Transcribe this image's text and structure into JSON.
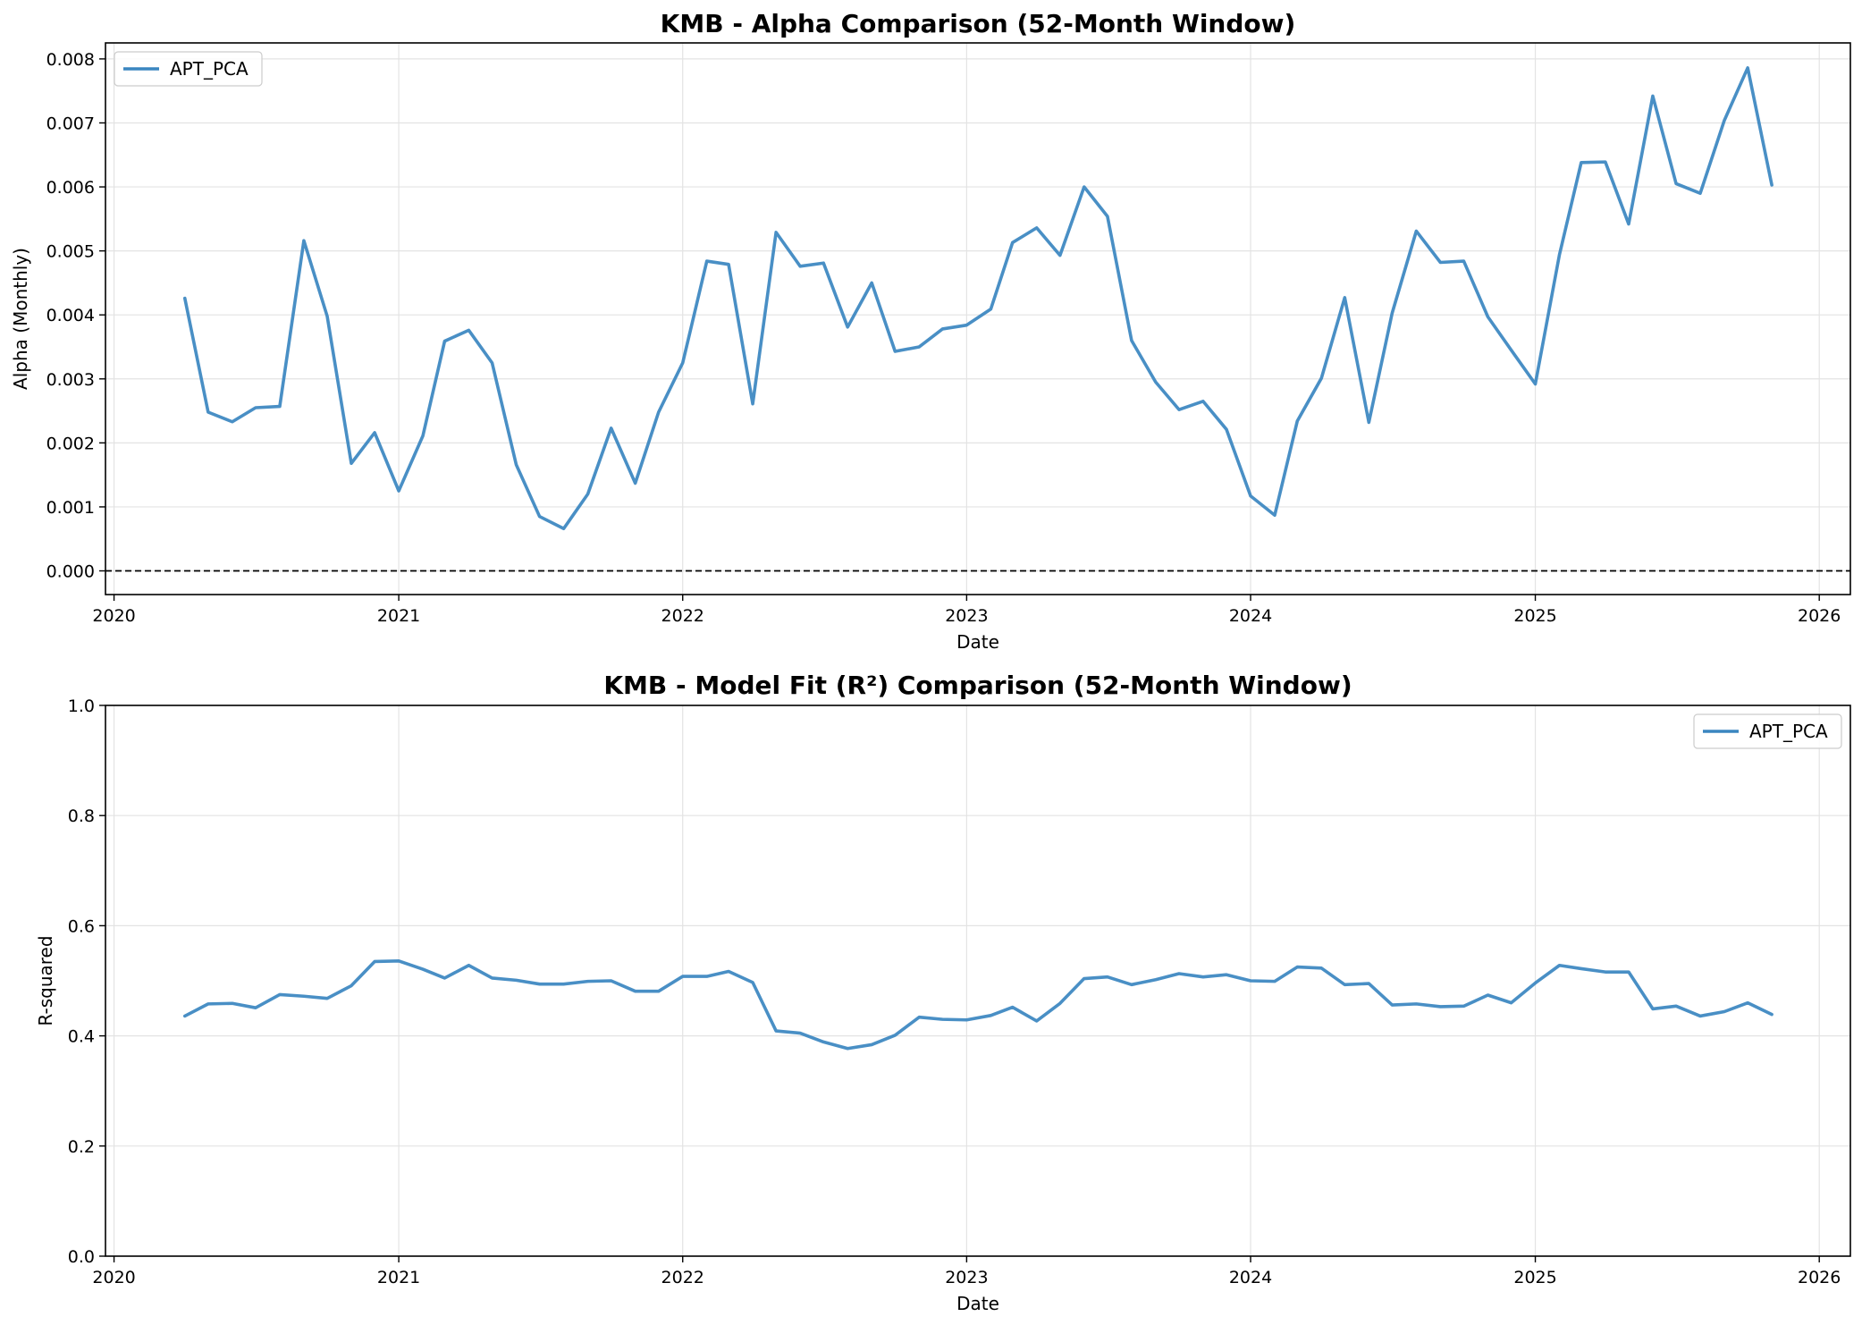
{
  "chart_data": [
    {
      "type": "line",
      "title": "KMB - Alpha Comparison (52-Month Window)",
      "xlabel": "Date",
      "ylabel": "Alpha (Monthly)",
      "xlim": [
        "2019-12-21",
        "2026-02-10"
      ],
      "ylim": [
        -0.00037,
        0.00825
      ],
      "yticks": [
        0.0,
        0.001,
        0.002,
        0.003,
        0.004,
        0.005,
        0.006,
        0.007,
        0.008
      ],
      "ytick_labels": [
        "0.000",
        "0.001",
        "0.002",
        "0.003",
        "0.004",
        "0.005",
        "0.006",
        "0.007",
        "0.008"
      ],
      "xticks": [
        "2020",
        "2021",
        "2022",
        "2023",
        "2024",
        "2025",
        "2026"
      ],
      "grid": true,
      "reference_line": {
        "y": 0,
        "style": "dashed",
        "color": "#000000"
      },
      "legend": {
        "position": "top-left"
      },
      "series": [
        {
          "name": "APT_PCA",
          "color": "#3a86c0",
          "x": [
            "2020-04",
            "2020-05",
            "2020-06",
            "2020-07",
            "2020-08",
            "2020-09",
            "2020-10",
            "2020-11",
            "2020-12",
            "2021-01",
            "2021-02",
            "2021-03",
            "2021-04",
            "2021-05",
            "2021-06",
            "2021-07",
            "2021-08",
            "2021-09",
            "2021-10",
            "2021-11",
            "2021-12",
            "2022-01",
            "2022-02",
            "2022-03",
            "2022-04",
            "2022-05",
            "2022-06",
            "2022-07",
            "2022-08",
            "2022-09",
            "2022-10",
            "2022-11",
            "2022-12",
            "2023-01",
            "2023-02",
            "2023-03",
            "2023-04",
            "2023-05",
            "2023-06",
            "2023-07",
            "2023-08",
            "2023-09",
            "2023-10",
            "2023-11",
            "2023-12",
            "2024-01",
            "2024-02",
            "2024-03",
            "2024-04",
            "2024-05",
            "2024-06",
            "2024-07",
            "2024-08",
            "2024-09",
            "2024-10",
            "2024-11",
            "2024-12",
            "2025-01",
            "2025-02",
            "2025-03",
            "2025-04",
            "2025-05",
            "2025-06",
            "2025-07",
            "2025-08",
            "2025-09",
            "2025-10",
            "2025-11"
          ],
          "values": [
            0.00426,
            0.00248,
            0.00233,
            0.00255,
            0.00257,
            0.00516,
            0.00398,
            0.00168,
            0.00216,
            0.00125,
            0.00211,
            0.00359,
            0.00376,
            0.00325,
            0.00166,
            0.00085,
            0.00066,
            0.0012,
            0.00223,
            0.00137,
            0.00248,
            0.00325,
            0.00484,
            0.00479,
            0.00261,
            0.00529,
            0.00476,
            0.00481,
            0.00381,
            0.0045,
            0.00343,
            0.0035,
            0.00378,
            0.00384,
            0.00409,
            0.00513,
            0.00536,
            0.00493,
            0.006,
            0.00554,
            0.0036,
            0.00295,
            0.00252,
            0.00265,
            0.00221,
            0.00117,
            0.00087,
            0.00234,
            0.00301,
            0.00427,
            0.00232,
            0.00403,
            0.00531,
            0.00482,
            0.00484,
            0.00397,
            0.00345,
            0.00292,
            0.00494,
            0.00638,
            0.00639,
            0.00542,
            0.00742,
            0.00605,
            0.0059,
            0.00704,
            0.00786,
            0.00603
          ]
        }
      ]
    },
    {
      "type": "line",
      "title": "KMB - Model Fit (R²) Comparison (52-Month Window)",
      "xlabel": "Date",
      "ylabel": "R-squared",
      "xlim": [
        "2019-12-21",
        "2026-02-10"
      ],
      "ylim": [
        0.0,
        1.0
      ],
      "yticks": [
        0.0,
        0.2,
        0.4,
        0.6,
        0.8,
        1.0
      ],
      "ytick_labels": [
        "0.0",
        "0.2",
        "0.4",
        "0.6",
        "0.8",
        "1.0"
      ],
      "xticks": [
        "2020",
        "2021",
        "2022",
        "2023",
        "2024",
        "2025",
        "2026"
      ],
      "grid": true,
      "legend": {
        "position": "top-right"
      },
      "series": [
        {
          "name": "APT_PCA",
          "color": "#3a86c0",
          "x": [
            "2020-04",
            "2020-05",
            "2020-06",
            "2020-07",
            "2020-08",
            "2020-09",
            "2020-10",
            "2020-11",
            "2020-12",
            "2021-01",
            "2021-02",
            "2021-03",
            "2021-04",
            "2021-05",
            "2021-06",
            "2021-07",
            "2021-08",
            "2021-09",
            "2021-10",
            "2021-11",
            "2021-12",
            "2022-01",
            "2022-02",
            "2022-03",
            "2022-04",
            "2022-05",
            "2022-06",
            "2022-07",
            "2022-08",
            "2022-09",
            "2022-10",
            "2022-11",
            "2022-12",
            "2023-01",
            "2023-02",
            "2023-03",
            "2023-04",
            "2023-05",
            "2023-06",
            "2023-07",
            "2023-08",
            "2023-09",
            "2023-10",
            "2023-11",
            "2023-12",
            "2024-01",
            "2024-02",
            "2024-03",
            "2024-04",
            "2024-05",
            "2024-06",
            "2024-07",
            "2024-08",
            "2024-09",
            "2024-10",
            "2024-11",
            "2024-12",
            "2025-01",
            "2025-02",
            "2025-03",
            "2025-04",
            "2025-05",
            "2025-06",
            "2025-07",
            "2025-08",
            "2025-09",
            "2025-10",
            "2025-11"
          ],
          "values": [
            0.436,
            0.458,
            0.459,
            0.451,
            0.475,
            0.472,
            0.468,
            0.491,
            0.535,
            0.536,
            0.521,
            0.505,
            0.528,
            0.505,
            0.501,
            0.494,
            0.494,
            0.499,
            0.5,
            0.481,
            0.481,
            0.508,
            0.508,
            0.517,
            0.497,
            0.409,
            0.405,
            0.389,
            0.377,
            0.384,
            0.401,
            0.434,
            0.43,
            0.429,
            0.437,
            0.452,
            0.427,
            0.459,
            0.504,
            0.507,
            0.493,
            0.502,
            0.513,
            0.507,
            0.511,
            0.5,
            0.499,
            0.525,
            0.523,
            0.493,
            0.495,
            0.456,
            0.458,
            0.453,
            0.454,
            0.474,
            0.46,
            0.496,
            0.528,
            0.522,
            0.516,
            0.516,
            0.449,
            0.454,
            0.436,
            0.444,
            0.46,
            0.439
          ]
        }
      ]
    }
  ]
}
